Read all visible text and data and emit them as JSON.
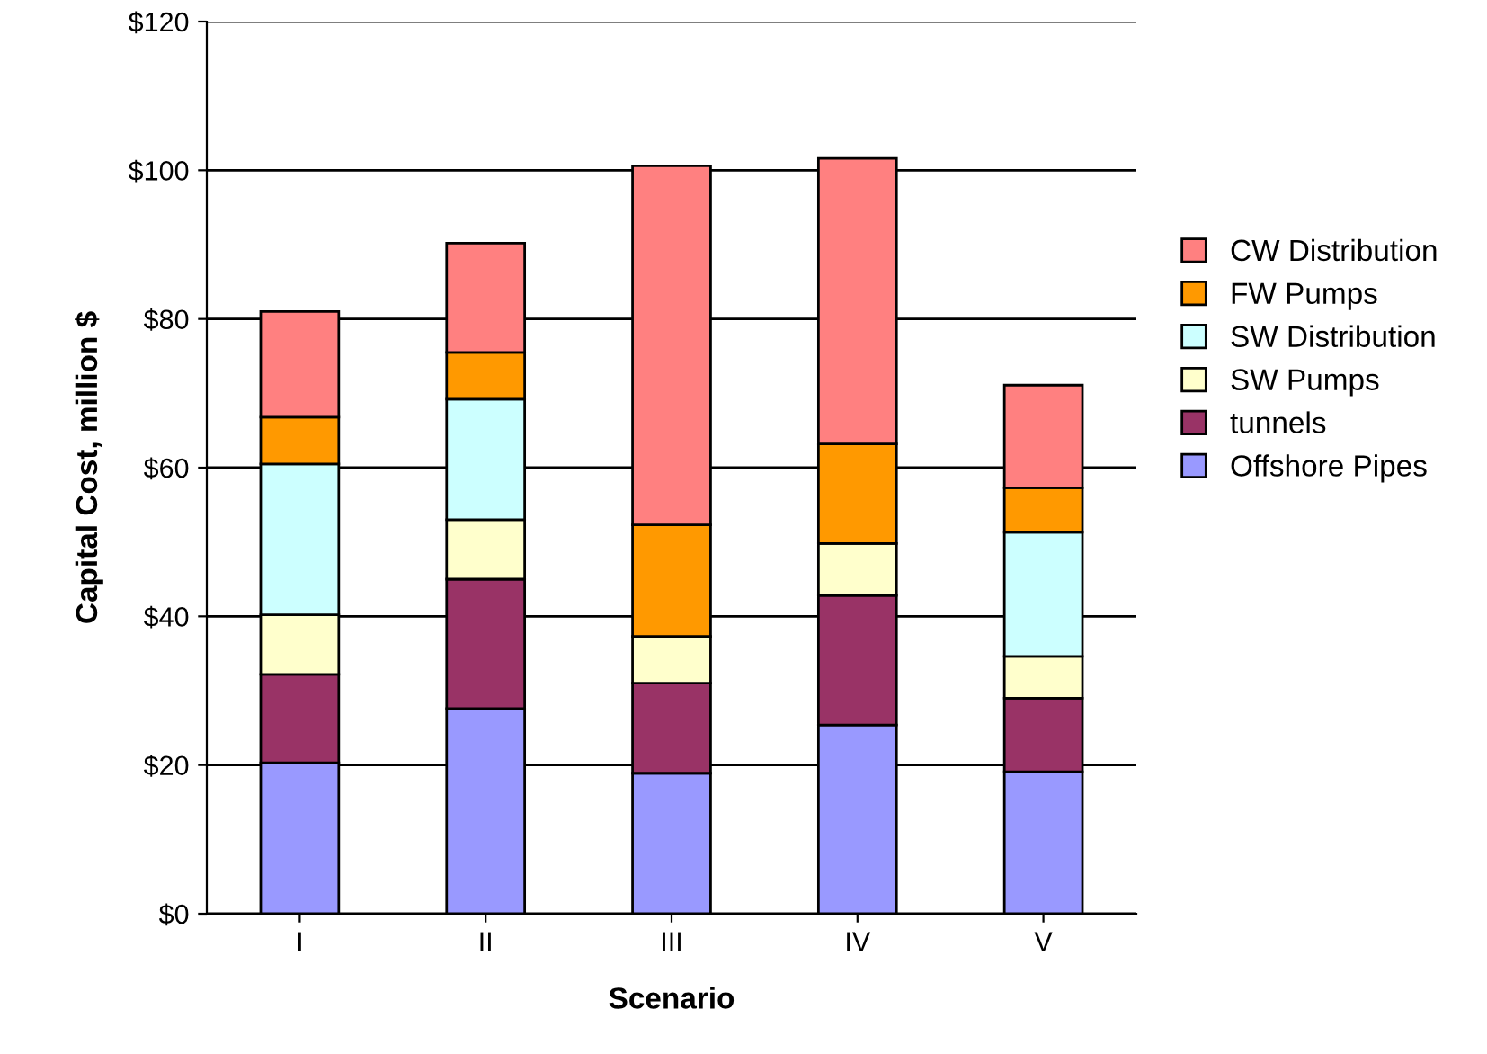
{
  "chart_data": {
    "type": "bar",
    "stacked": true,
    "xlabel": "Scenario",
    "ylabel": "Capital Cost, million $",
    "categories": [
      "I",
      "II",
      "III",
      "IV",
      "V"
    ],
    "series": [
      {
        "name": "Offshore Pipes",
        "color": "#9999ff",
        "values": [
          20.3,
          27.6,
          18.9,
          25.4,
          19.1
        ]
      },
      {
        "name": "tunnels",
        "color": "#993366",
        "values": [
          11.9,
          17.4,
          12.1,
          17.4,
          9.9
        ]
      },
      {
        "name": "SW Pumps",
        "color": "#ffffcc",
        "values": [
          8.0,
          8.0,
          6.3,
          7.0,
          5.6
        ]
      },
      {
        "name": "SW Distribution",
        "color": "#ccffff",
        "values": [
          20.3,
          16.2,
          null,
          null,
          16.7
        ]
      },
      {
        "name": "FW Pumps",
        "color": "#ff9900",
        "values": [
          6.3,
          6.3,
          15.0,
          13.4,
          6.0
        ]
      },
      {
        "name": "CW Distribution",
        "color": "#ff8080",
        "values": [
          14.2,
          14.7,
          48.3,
          38.4,
          13.8
        ]
      }
    ],
    "ylim": [
      0,
      120
    ],
    "yticks": [
      {
        "value": 0,
        "label": "$0"
      },
      {
        "value": 20,
        "label": "$20"
      },
      {
        "value": 40,
        "label": "$40"
      },
      {
        "value": 60,
        "label": "$60"
      },
      {
        "value": 80,
        "label": "$80"
      },
      {
        "value": 100,
        "label": "$100"
      },
      {
        "value": 120,
        "label": "$120"
      }
    ],
    "grid": "y",
    "legend": "right"
  }
}
